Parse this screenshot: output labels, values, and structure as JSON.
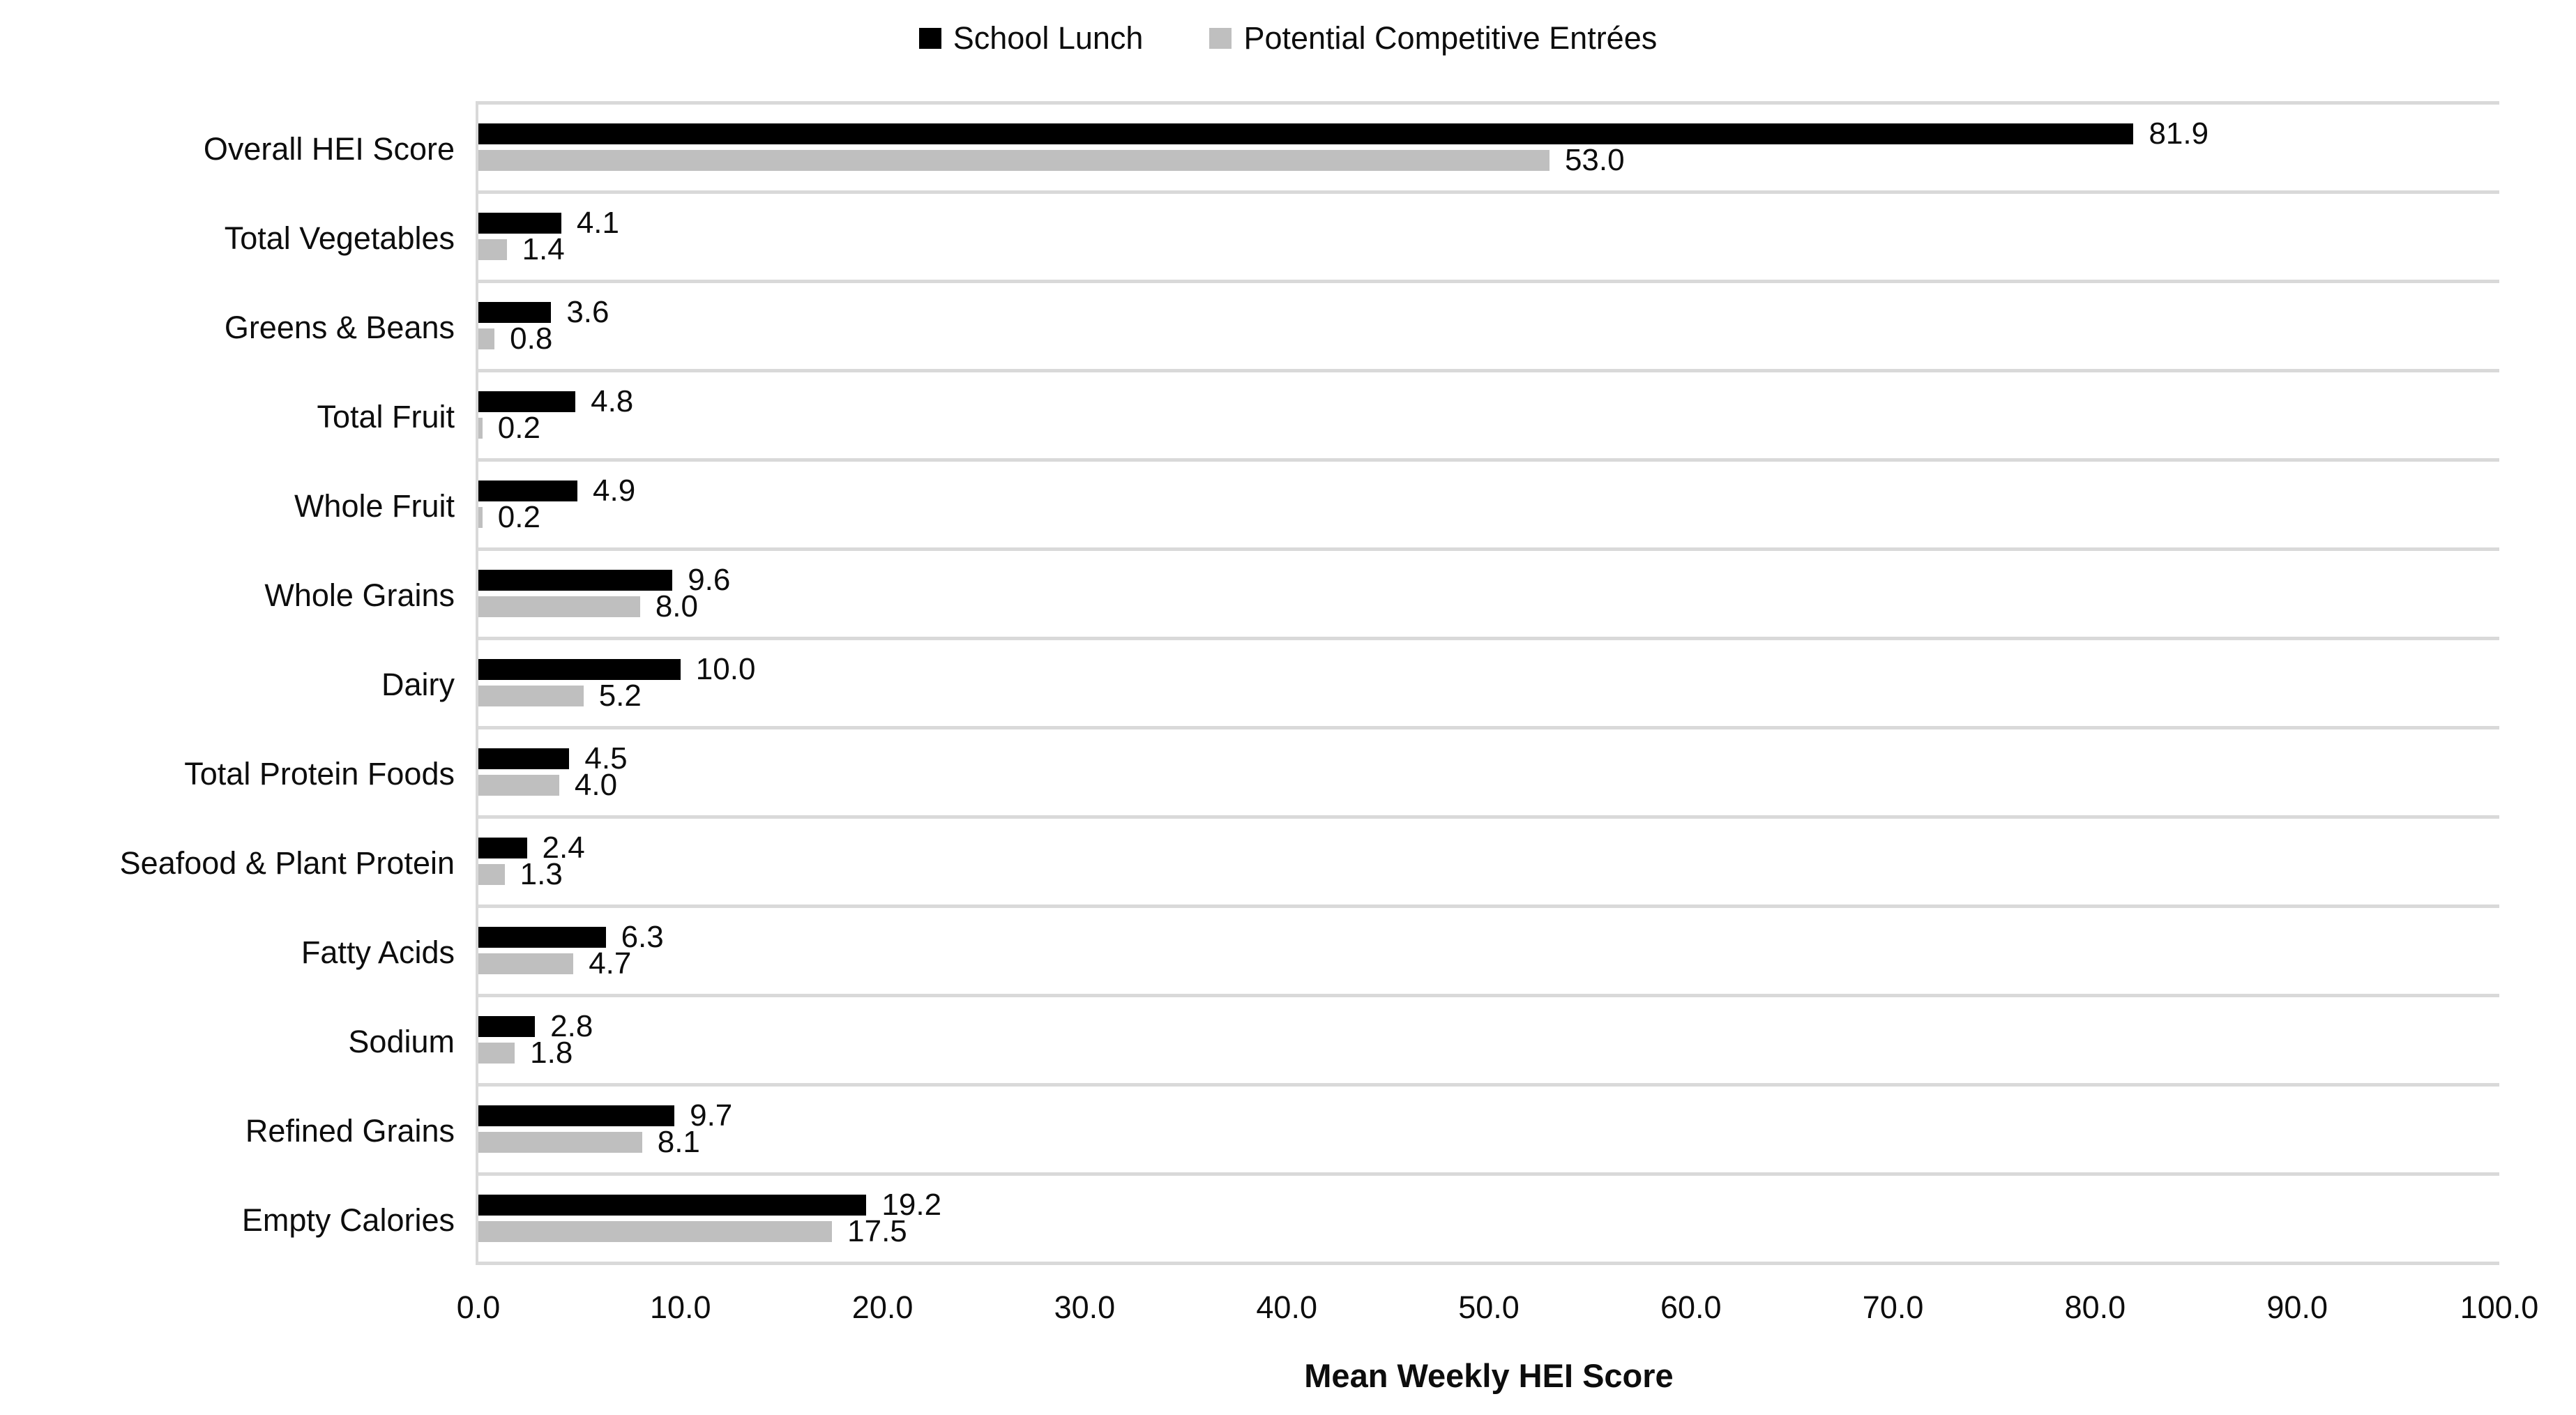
{
  "legend": {
    "items": [
      {
        "label": "School Lunch",
        "color": "#000000"
      },
      {
        "label": "Potential Competitive Entrées",
        "color": "#BFBFBF"
      }
    ]
  },
  "x_axis": {
    "title": "Mean Weekly HEI Score",
    "tick_labels": [
      "0.0",
      "10.0",
      "20.0",
      "30.0",
      "40.0",
      "50.0",
      "60.0",
      "70.0",
      "80.0",
      "90.0",
      "100.0"
    ]
  },
  "chart_data": {
    "type": "bar",
    "orientation": "horizontal",
    "title": "",
    "xlabel": "Mean Weekly HEI Score",
    "ylabel": "",
    "xlim": [
      0,
      100
    ],
    "xticks": [
      0,
      10,
      20,
      30,
      40,
      50,
      60,
      70,
      80,
      90,
      100
    ],
    "grid": "horizontal light-gray separators between category bands, left axis line, no vertical gridlines",
    "legend_position": "top-center",
    "categories": [
      "Overall HEI Score",
      "Total Vegetables",
      "Greens & Beans",
      "Total Fruit",
      "Whole Fruit",
      "Whole Grains",
      "Dairy",
      "Total Protein Foods",
      "Seafood & Plant Protein",
      "Fatty Acids",
      "Sodium",
      "Refined Grains",
      "Empty Calories"
    ],
    "series": [
      {
        "name": "School Lunch",
        "color": "#000000",
        "values": [
          81.9,
          4.1,
          3.6,
          4.8,
          4.9,
          9.6,
          10.0,
          4.5,
          2.4,
          6.3,
          2.8,
          9.7,
          19.2
        ],
        "labels": [
          "81.9",
          "4.1",
          "3.6",
          "4.8",
          "4.9",
          "9.6",
          "10.0",
          "4.5",
          "2.4",
          "6.3",
          "2.8",
          "9.7",
          "19.2"
        ]
      },
      {
        "name": "Potential Competitive Entrées",
        "color": "#BFBFBF",
        "values": [
          53.0,
          1.4,
          0.8,
          0.2,
          0.2,
          8.0,
          5.2,
          4.0,
          1.3,
          4.7,
          1.8,
          8.1,
          17.5
        ],
        "labels": [
          "53.0",
          "1.4",
          "0.8",
          "0.2",
          "0.2",
          "8.0",
          "5.2",
          "4.0",
          "1.3",
          "4.7",
          "1.8",
          "8.1",
          "17.5"
        ]
      }
    ]
  },
  "style": {
    "gridline_color": "#D9D9D9",
    "text_color": "#0d0d0d",
    "background": "#FFFFFF"
  }
}
